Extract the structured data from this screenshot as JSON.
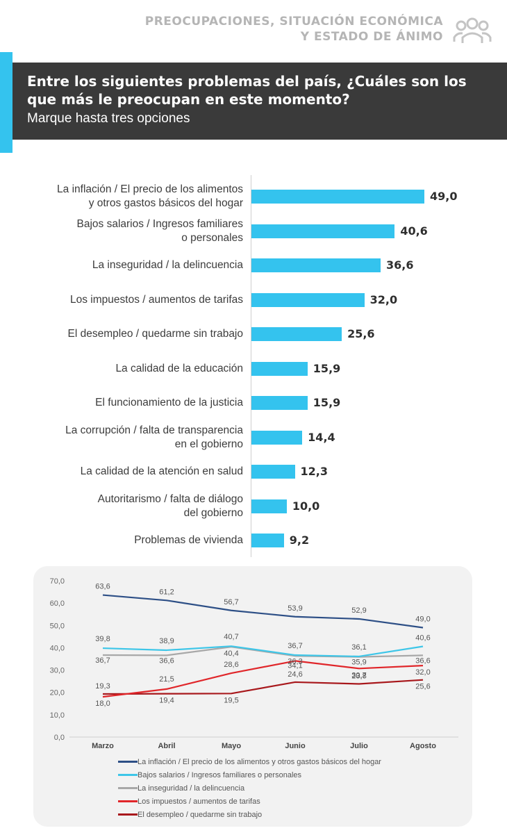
{
  "header": {
    "line1": "PREOCUPACIONES, SITUACIÓN ECONÓMICA",
    "line2": "Y ESTADO DE ÁNIMO",
    "icon": "people-group-icon"
  },
  "question": {
    "title": "Entre los siguientes problemas del país, ¿Cuáles son los que más le preocupan en este momento?",
    "subtitle": "Marque hasta tres opciones"
  },
  "colors": {
    "bar": "#34c3ee",
    "dark_box": "#3a3a3a",
    "inflacion": "#2d4f86",
    "salarios": "#3ec6e8",
    "inseguridad": "#a8a8a8",
    "impuestos": "#e0262a",
    "desempleo": "#a8181c"
  },
  "chart_data": [
    {
      "type": "bar",
      "orientation": "horizontal",
      "categories": [
        "La inflación / El precio de los alimentos\ny otros gastos básicos del hogar",
        "Bajos salarios / Ingresos familiares\no personales",
        "La inseguridad / la delincuencia",
        "Los impuestos / aumentos de tarifas",
        "El desempleo / quedarme sin trabajo",
        "La calidad de la educación",
        "El funcionamiento de la justicia",
        "La corrupción / falta de transparencia\nen el gobierno",
        "La calidad de la atención en salud",
        "Autoritarismo / falta de diálogo\ndel gobierno",
        "Problemas de vivienda"
      ],
      "values": [
        49.0,
        40.6,
        36.6,
        32.0,
        25.6,
        15.9,
        15.9,
        14.4,
        12.3,
        10.0,
        9.2
      ],
      "value_labels": [
        "49,0",
        "40,6",
        "36,6",
        "32,0",
        "25,6",
        "15,9",
        "15,9",
        "14,4",
        "12,3",
        "10,0",
        "9,2"
      ],
      "xlim": [
        0,
        50
      ]
    },
    {
      "type": "line",
      "categories": [
        "Marzo",
        "Abril",
        "Mayo",
        "Junio",
        "Julio",
        "Agosto"
      ],
      "ylim": [
        0,
        70
      ],
      "yticks": [
        "0,0",
        "10,0",
        "20,0",
        "30,0",
        "40,0",
        "50,0",
        "60,0",
        "70,0"
      ],
      "grid": false,
      "legend": "bottom",
      "series": [
        {
          "name": "La inflación / El precio de los alimentos y otros gastos básicos del hogar",
          "color_key": "inflacion",
          "values": [
            63.6,
            61.2,
            56.7,
            53.9,
            52.9,
            49.0
          ],
          "labels": [
            "63,6",
            "61,2",
            "56,7",
            "53,9",
            "52,9",
            "49,0"
          ]
        },
        {
          "name": "Bajos salarios / Ingresos familiares o personales",
          "color_key": "salarios",
          "values": [
            39.8,
            38.9,
            40.7,
            36.7,
            36.1,
            40.6
          ],
          "labels": [
            "39,8",
            "38,9",
            "40,7",
            "36,7",
            "36,1",
            "40,6"
          ]
        },
        {
          "name": "La inseguridad / la delincuencia",
          "color_key": "inseguridad",
          "values": [
            36.7,
            36.6,
            40.4,
            36.3,
            35.9,
            36.6
          ],
          "labels": [
            "36,7",
            "36,6",
            "40,4",
            "36,3",
            "35,9",
            "36,6"
          ]
        },
        {
          "name": "Los impuestos / aumentos de tarifas",
          "color_key": "impuestos",
          "values": [
            18.0,
            21.5,
            28.6,
            34.1,
            30.7,
            32.0
          ],
          "labels": [
            "18,0",
            "21,5",
            "28,6",
            "34,1",
            "30,7",
            "32,0"
          ]
        },
        {
          "name": "El desempleo / quedarme sin trabajo",
          "color_key": "desempleo",
          "values": [
            19.3,
            19.4,
            19.5,
            24.6,
            23.8,
            25.6
          ],
          "labels": [
            "19,3",
            "19,4",
            "19,5",
            "24,6",
            "23,8",
            "25,6"
          ]
        }
      ]
    }
  ]
}
